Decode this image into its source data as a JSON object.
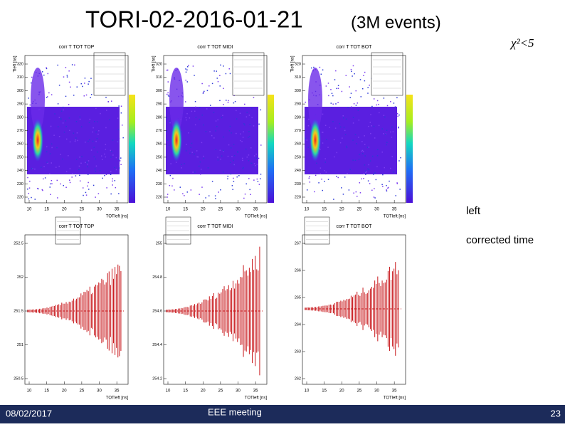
{
  "header": {
    "title": "TORI-02-2016-01-21",
    "subtitle": "(3M events)"
  },
  "notes": {
    "chi2": "χ²<5",
    "left": "left",
    "corrected": "corrected time"
  },
  "top_plots": [
    {
      "title": "corr T TOT TOP",
      "x_label": "TOTleft [ns]",
      "y_label": "Tleft [ns]",
      "xticks": [
        "10",
        "15",
        "20",
        "25",
        "30",
        "35"
      ],
      "yticks": [
        "220",
        "230",
        "240",
        "250",
        "260",
        "270",
        "280",
        "290",
        "300",
        "310",
        "320"
      ]
    },
    {
      "title": "corr T TOT MIDI",
      "x_label": "TOTleft [ns]",
      "y_label": "Tleft [ns]",
      "xticks": [
        "10",
        "15",
        "20",
        "25",
        "30",
        "35"
      ],
      "yticks": [
        "220",
        "230",
        "240",
        "250",
        "260",
        "270",
        "280",
        "290",
        "300",
        "310",
        "320"
      ]
    },
    {
      "title": "corr T TOT BOT",
      "x_label": "TOTleft [ns]",
      "y_label": "Tleft [ns]",
      "xticks": [
        "10",
        "15",
        "20",
        "25",
        "30",
        "35"
      ],
      "yticks": [
        "220",
        "230",
        "240",
        "250",
        "260",
        "270",
        "280",
        "290",
        "300",
        "310",
        "320"
      ]
    }
  ],
  "bottom_plots": [
    {
      "title": "corr T TOT TOP",
      "x_label": "TOTleft [ns]",
      "xticks": [
        "10",
        "15",
        "20",
        "25",
        "30",
        "35"
      ],
      "yticks": [
        "250.5",
        "251",
        "251.5",
        "252",
        "252.5"
      ]
    },
    {
      "title": "corr T TOT MIDI",
      "x_label": "TOTleft [ns]",
      "xticks": [
        "10",
        "15",
        "20",
        "25",
        "30",
        "35"
      ],
      "yticks": [
        "254.2",
        "254.4",
        "254.6",
        "254.8",
        "255"
      ]
    },
    {
      "title": "corr T TOT BOT",
      "x_label": "TOTleft [ns]",
      "xticks": [
        "10",
        "15",
        "20",
        "25",
        "30",
        "35"
      ],
      "yticks": [
        "262",
        "263",
        "264",
        "265",
        "266",
        "267"
      ]
    }
  ],
  "footer": {
    "date": "08/02/2017",
    "event": "EEE meeting",
    "page": "23"
  }
}
